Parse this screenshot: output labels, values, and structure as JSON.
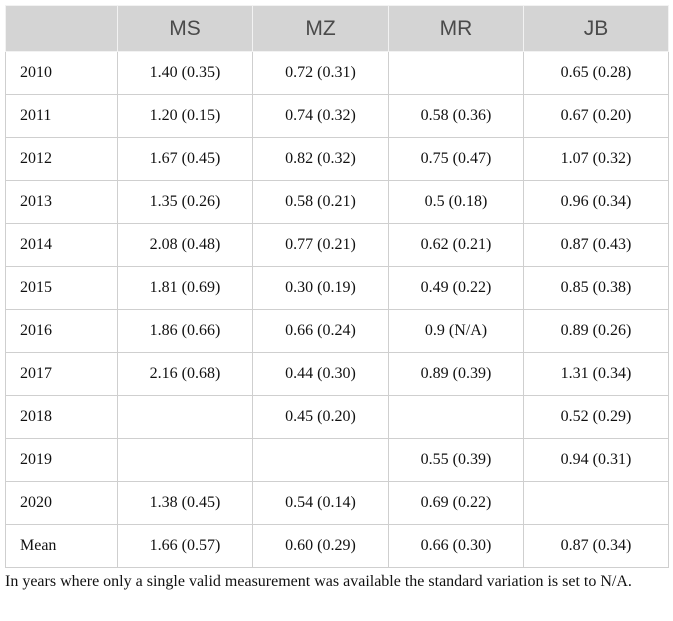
{
  "table": {
    "columns": [
      null,
      "MS",
      "MZ",
      "MR",
      "JB"
    ],
    "rows": [
      [
        "2010",
        "1.40 (0.35)",
        "0.72 (0.31)",
        null,
        "0.65 (0.28)"
      ],
      [
        "2011",
        "1.20 (0.15)",
        "0.74 (0.32)",
        "0.58 (0.36)",
        "0.67 (0.20)"
      ],
      [
        "2012",
        "1.67 (0.45)",
        "0.82 (0.32)",
        "0.75 (0.47)",
        "1.07 (0.32)"
      ],
      [
        "2013",
        "1.35 (0.26)",
        "0.58 (0.21)",
        "0.5 (0.18)",
        "0.96 (0.34)"
      ],
      [
        "2014",
        "2.08 (0.48)",
        "0.77 (0.21)",
        "0.62 (0.21)",
        "0.87 (0.43)"
      ],
      [
        "2015",
        "1.81 (0.69)",
        "0.30 (0.19)",
        "0.49 (0.22)",
        "0.85 (0.38)"
      ],
      [
        "2016",
        "1.86 (0.66)",
        "0.66 (0.24)",
        "0.9 (N/A)",
        "0.89 (0.26)"
      ],
      [
        "2017",
        "2.16 (0.68)",
        "0.44 (0.30)",
        "0.89 (0.39)",
        "1.31 (0.34)"
      ],
      [
        "2018",
        null,
        "0.45 (0.20)",
        null,
        "0.52 (0.29)"
      ],
      [
        "2019",
        null,
        null,
        "0.55 (0.39)",
        "0.94 (0.31)"
      ],
      [
        "2020",
        "1.38 (0.45)",
        "0.54 (0.14)",
        "0.69 (0.22)",
        null
      ],
      [
        "Mean",
        "1.66 (0.57)",
        "0.60 (0.29)",
        "0.66 (0.30)",
        "0.87 (0.34)"
      ]
    ],
    "footnote": "In years where only a single valid measurement was available the standard variation is set to N/A."
  }
}
